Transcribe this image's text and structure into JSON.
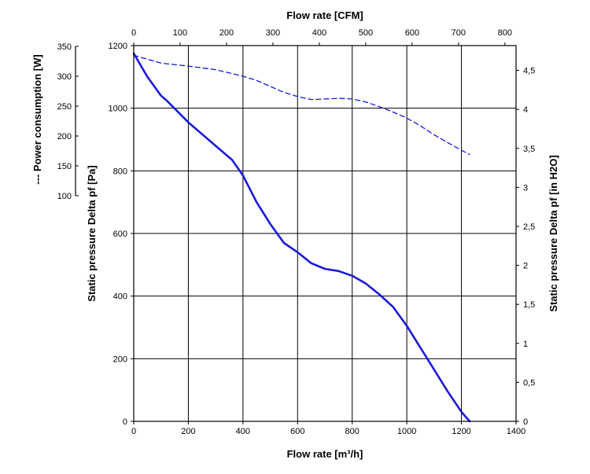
{
  "chart_data": {
    "type": "line",
    "title": "",
    "xlabel": "Flow rate [m³/h]",
    "x2label": "Flow rate [CFM]",
    "ylabel": "Static pressure Delta pf [Pa]",
    "y2label": "Static pressure Delta pf [in H2O]",
    "y3label": "--- Power consumption [W]",
    "xlim": [
      0,
      1400
    ],
    "ylim": [
      0,
      1200
    ],
    "x2lim": [
      0,
      824
    ],
    "y2lim": [
      0,
      4.818
    ],
    "y3lim": [
      100,
      350
    ],
    "grid": true,
    "x_ticks": [
      "0",
      "200",
      "400",
      "600",
      "800",
      "1000",
      "1200",
      "1400"
    ],
    "y_ticks": [
      "0",
      "200",
      "400",
      "600",
      "800",
      "1000",
      "1200"
    ],
    "x2_ticks": [
      "0",
      "100",
      "200",
      "300",
      "400",
      "500",
      "600",
      "700",
      "800"
    ],
    "y2_ticks": [
      "0",
      "0,5",
      "1",
      "1,5",
      "2",
      "2,5",
      "3",
      "3,5",
      "4",
      "4,5"
    ],
    "y3_ticks": [
      "100",
      "150",
      "200",
      "250",
      "300",
      "350"
    ],
    "series": [
      {
        "style": "solid",
        "axis": "pressure",
        "color": "#1a1adc",
        "x": [
          0,
          50,
          100,
          120,
          200,
          300,
          360,
          380,
          400,
          450,
          500,
          550,
          600,
          650,
          700,
          750,
          800,
          850,
          900,
          950,
          1000,
          1050,
          1100,
          1150,
          1200,
          1230
        ],
        "y": [
          1175,
          1100,
          1040,
          1025,
          955,
          880,
          835,
          810,
          785,
          700,
          630,
          570,
          540,
          505,
          487,
          480,
          465,
          440,
          405,
          365,
          305,
          235,
          165,
          95,
          30,
          0
        ]
      },
      {
        "style": "dashed",
        "axis": "power",
        "color": "#1a1adc",
        "x": [
          0,
          100,
          200,
          300,
          400,
          450,
          500,
          550,
          600,
          650,
          700,
          750,
          800,
          850,
          900,
          950,
          1000,
          1050,
          1100,
          1150,
          1200,
          1230
        ],
        "y": [
          335,
          322,
          317,
          311,
          300,
          293,
          283,
          273,
          266,
          261,
          262,
          263,
          262,
          257,
          249,
          240,
          230,
          217,
          202,
          189,
          176,
          169
        ]
      }
    ]
  }
}
